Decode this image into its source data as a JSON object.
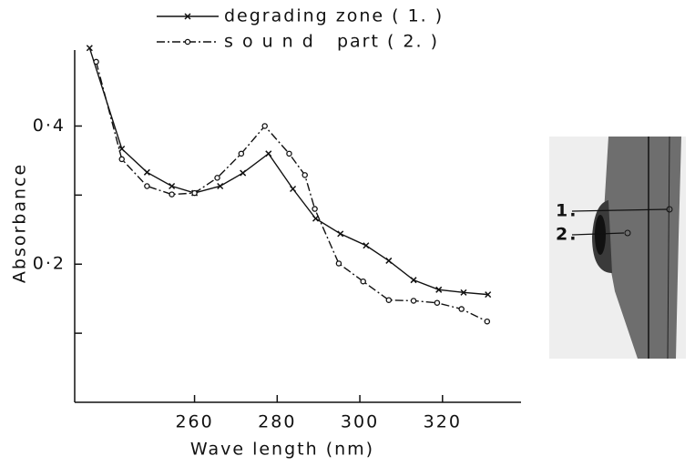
{
  "chart_data": {
    "type": "line",
    "x_label": "Wave length (nm)",
    "y_label": "Absorbance",
    "xlim": [
      231,
      339
    ],
    "ylim": [
      0,
      0.51
    ],
    "xticks": [
      260,
      280,
      300,
      320
    ],
    "yticks": [
      {
        "value": 0.2,
        "label": "0·2"
      },
      {
        "value": 0.4,
        "label": "0·4"
      }
    ],
    "y_minor_ticks": [
      0.1,
      0.3
    ],
    "series": [
      {
        "name": "degrading zone ( 1. )",
        "color": "#111111",
        "marker": "x",
        "dash": "solid",
        "x": [
          234.6,
          242.4,
          248.5,
          254.5,
          260,
          266.2,
          271.7,
          277.9,
          283.8,
          289.3,
          295.3,
          301.5,
          307,
          313,
          319.1,
          325.1,
          331
        ],
        "values": [
          0.513,
          0.367,
          0.333,
          0.313,
          0.303,
          0.313,
          0.332,
          0.36,
          0.309,
          0.266,
          0.244,
          0.227,
          0.205,
          0.177,
          0.163,
          0.159,
          0.156
        ]
      },
      {
        "name": "s o u n d   part ( 2. )",
        "color": "#111111",
        "marker": "o",
        "dash": "dashdot",
        "x": [
          236.2,
          242.4,
          248.5,
          254.5,
          260,
          265.5,
          271.3,
          277,
          282.9,
          286.7,
          289.1,
          294.9,
          300.8,
          307,
          313,
          318.7,
          324.6,
          330.8
        ],
        "values": [
          0.493,
          0.352,
          0.313,
          0.301,
          0.303,
          0.325,
          0.36,
          0.4,
          0.36,
          0.329,
          0.28,
          0.201,
          0.175,
          0.148,
          0.147,
          0.144,
          0.135,
          0.117
        ]
      }
    ],
    "inset_labels": [
      "1.",
      "2."
    ]
  }
}
